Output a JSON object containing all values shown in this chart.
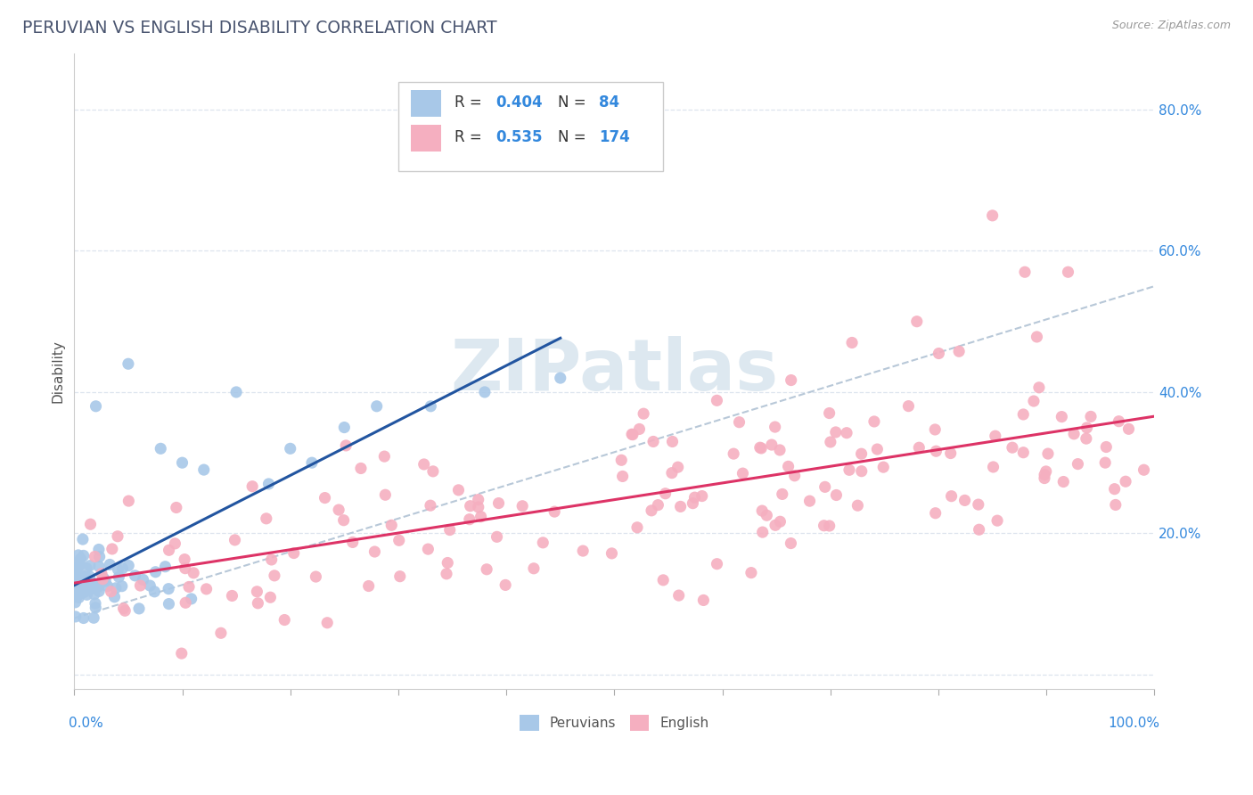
{
  "title": "PERUVIAN VS ENGLISH DISABILITY CORRELATION CHART",
  "source": "Source: ZipAtlas.com",
  "ylabel": "Disability",
  "y_tick_positions": [
    0.0,
    0.2,
    0.4,
    0.6,
    0.8
  ],
  "y_tick_labels": [
    "",
    "20.0%",
    "40.0%",
    "60.0%",
    "80.0%"
  ],
  "x_lim": [
    0.0,
    1.0
  ],
  "y_lim": [
    -0.02,
    0.88
  ],
  "peruvian_R": 0.404,
  "peruvian_N": 84,
  "english_R": 0.535,
  "english_N": 174,
  "peruvian_color": "#a8c8e8",
  "english_color": "#f5afc0",
  "peruvian_line_color": "#2255a0",
  "english_line_color": "#dd3366",
  "trend_line_color": "#b8c8d8",
  "background_color": "#ffffff",
  "grid_color": "#dde4ee",
  "title_color": "#4a5570",
  "source_color": "#999999",
  "legend_text_color": "#333333",
  "legend_value_color": "#3388dd",
  "axis_label_color": "#3388dd",
  "watermark_color": "#dde8f0"
}
